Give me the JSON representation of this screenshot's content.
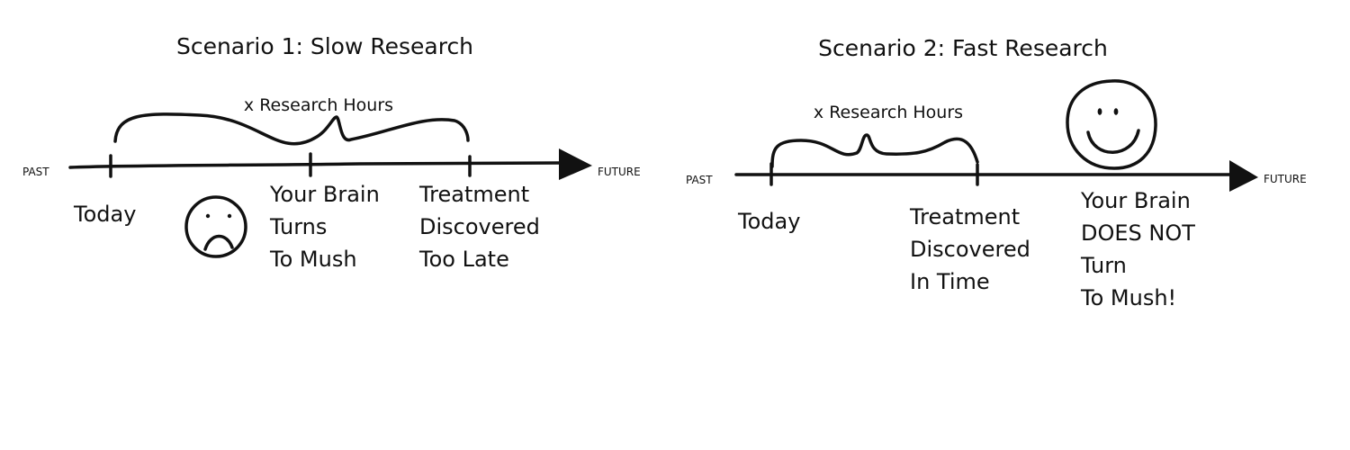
{
  "scenarios": [
    {
      "title": "Scenario 1: Slow Research",
      "axis": {
        "start": "PAST",
        "end": "FUTURE"
      },
      "brace_label": "x Research Hours",
      "marks": {
        "today": [
          "Today"
        ],
        "brain": [
          "Your Brain",
          "Turns",
          "To Mush"
        ],
        "treatment": [
          "Treatment",
          "Discovered",
          "Too Late"
        ]
      },
      "face": "frowning-face"
    },
    {
      "title": "Scenario 2: Fast Research",
      "axis": {
        "start": "PAST",
        "end": "FUTURE"
      },
      "brace_label": "x Research Hours",
      "marks": {
        "today": [
          "Today"
        ],
        "treatment": [
          "Treatment",
          "Discovered",
          "In Time"
        ],
        "brain": [
          "Your Brain",
          "DOES NOT",
          "Turn",
          "To Mush!"
        ]
      },
      "face": "smiling-face"
    }
  ]
}
